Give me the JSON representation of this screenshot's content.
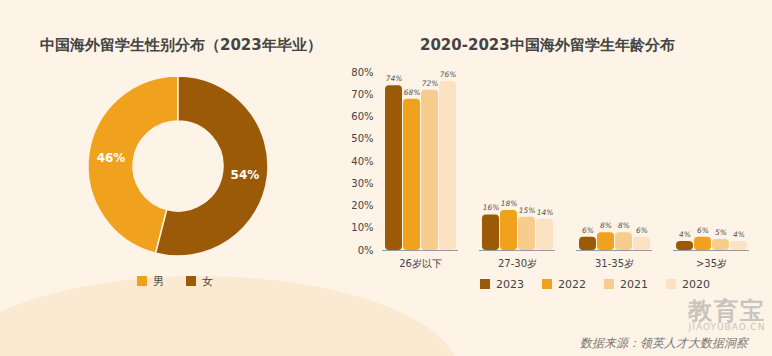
{
  "chart_data": [
    {
      "type": "pie",
      "title": "中国海外留学生性别分布（2023年毕业）",
      "categories": [
        "男",
        "女"
      ],
      "values": [
        46,
        54
      ],
      "value_labels": [
        "46%",
        "54%"
      ],
      "colors": [
        "#f0a21f",
        "#9a5a08"
      ],
      "data_labels": true,
      "legend": "bottom"
    },
    {
      "type": "bar",
      "title": "2020-2023中国海外留学生年龄分布",
      "categories": [
        "26岁以下",
        "27-30岁",
        "31-35岁",
        ">35岁"
      ],
      "series": [
        {
          "name": "2023",
          "color": "#9a5a08",
          "values": [
            74,
            16,
            6,
            4
          ],
          "value_labels": [
            "74%",
            "16%",
            "6%",
            "4%"
          ]
        },
        {
          "name": "2022",
          "color": "#f0a21f",
          "values": [
            68,
            18,
            8,
            6
          ],
          "value_labels": [
            "68%",
            "18%",
            "8%",
            "6%"
          ]
        },
        {
          "name": "2021",
          "color": "#f6cd8c",
          "values": [
            72,
            15,
            8,
            5
          ],
          "value_labels": [
            "72%",
            "15%",
            "8%",
            "5%"
          ]
        },
        {
          "name": "2020",
          "color": "#fbe2c2",
          "values": [
            76,
            14,
            6,
            4
          ],
          "value_labels": [
            "76%",
            "14%",
            "6%",
            "4%"
          ]
        }
      ],
      "ylim": [
        0,
        80
      ],
      "yticks": [
        {
          "value": 0,
          "label": "0%"
        },
        {
          "value": 10,
          "label": "10%"
        },
        {
          "value": 20,
          "label": "20%"
        },
        {
          "value": 30,
          "label": "30%"
        },
        {
          "value": 40,
          "label": "40%"
        },
        {
          "value": 50,
          "label": "50%"
        },
        {
          "value": 60,
          "label": "60%"
        },
        {
          "value": 70,
          "label": "70%"
        },
        {
          "value": 80,
          "label": "80%"
        }
      ],
      "grid": false,
      "data_labels": true,
      "legend": "bottom"
    }
  ],
  "source": "数据来源：领英人才大数据洞察",
  "watermark": [
    "教育宝",
    "JIAOYUBAO.CN"
  ]
}
